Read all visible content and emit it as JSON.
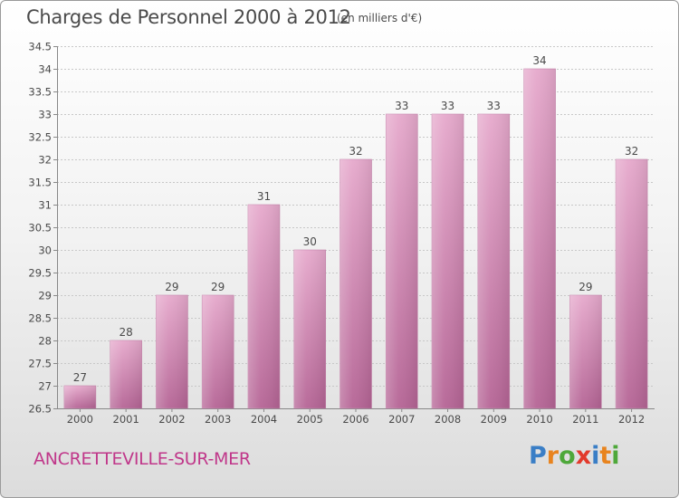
{
  "title": "Charges de Personnel 2000 à 2012",
  "subtitle": "(en milliers d'€)",
  "town": "ANCRETTEVILLE-SUR-MER",
  "logo": {
    "text": "Proxiti",
    "letters": [
      {
        "ch": "P",
        "color": "#3a7ec6"
      },
      {
        "ch": "r",
        "color": "#e8841f"
      },
      {
        "ch": "o",
        "color": "#4ea83a"
      },
      {
        "ch": "x",
        "color": "#e23a2c"
      },
      {
        "ch": "i",
        "color": "#3a7ec6"
      },
      {
        "ch": "t",
        "color": "#e8841f"
      },
      {
        "ch": "i",
        "color": "#4ea83a"
      }
    ]
  },
  "colors": {
    "bar": "#d98fba",
    "bar_dark": "#b56495",
    "text": "#4a4a4a",
    "town": "#c0378a",
    "grid": "#c8c8c8"
  },
  "chart_data": {
    "type": "bar",
    "title": "Charges de Personnel 2000 à 2012",
    "subtitle": "(en milliers d'€)",
    "categories": [
      "2000",
      "2001",
      "2002",
      "2003",
      "2004",
      "2005",
      "2006",
      "2007",
      "2008",
      "2009",
      "2010",
      "2011",
      "2012"
    ],
    "values": [
      27,
      28,
      29,
      29,
      31,
      30,
      32,
      33,
      33,
      33,
      34,
      29,
      32
    ],
    "data_labels": [
      "27",
      "28",
      "29",
      "29",
      "31",
      "30",
      "32",
      "33",
      "33",
      "33",
      "34",
      "29",
      "32"
    ],
    "ylim": [
      26.5,
      34.5
    ],
    "yticks": [
      26.5,
      27,
      27.5,
      28,
      28.5,
      29,
      29.5,
      30,
      30.5,
      31,
      31.5,
      32,
      32.5,
      33,
      33.5,
      34,
      34.5
    ],
    "ytick_labels": [
      "26.5",
      "27",
      "27.5",
      "28",
      "28.5",
      "29",
      "29.5",
      "30",
      "30.5",
      "31",
      "31.5",
      "32",
      "32.5",
      "33",
      "33.5",
      "34",
      "34.5"
    ],
    "xlabel": "",
    "ylabel": "",
    "grid": true,
    "legend": "none"
  }
}
